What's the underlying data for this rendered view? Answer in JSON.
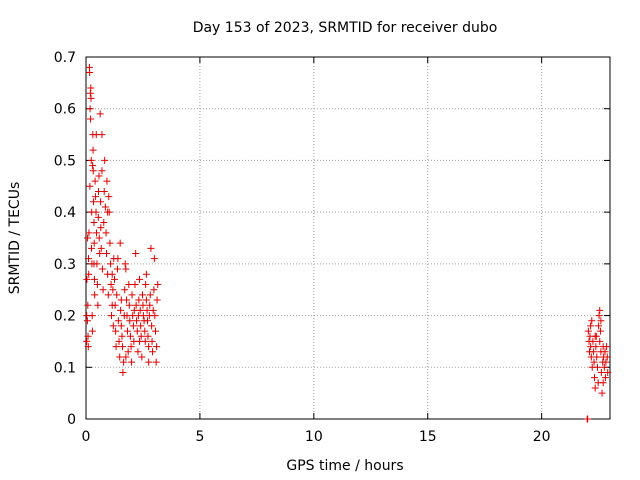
{
  "chart_data": {
    "type": "scatter",
    "title": "Day 153 of 2023, SRMTID for receiver dubo",
    "xlabel": "GPS time / hours",
    "ylabel": "SRMTID / TECUs",
    "xlim": [
      0,
      23
    ],
    "ylim": [
      0,
      0.7
    ],
    "xticks": [
      0,
      5,
      10,
      15,
      20
    ],
    "yticks": [
      0,
      0.1,
      0.2,
      0.3,
      0.4,
      0.5,
      0.6,
      0.7
    ],
    "grid": true,
    "legend": "none",
    "marker": "plus",
    "color": "#e00000",
    "series": [
      {
        "values": [
          [
            0.03,
            0.15
          ],
          [
            0.03,
            0.2
          ],
          [
            0.04,
            0.27
          ],
          [
            0.06,
            0.19
          ],
          [
            0.07,
            0.35
          ],
          [
            0.08,
            0.22
          ],
          [
            0.09,
            0.16
          ],
          [
            0.1,
            0.14
          ],
          [
            0.11,
            0.31
          ],
          [
            0.12,
            0.28
          ],
          [
            0.13,
            0.36
          ],
          [
            0.15,
            0.68
          ],
          [
            0.16,
            0.67
          ],
          [
            0.17,
            0.45
          ],
          [
            0.18,
            0.6
          ],
          [
            0.19,
            0.63
          ],
          [
            0.2,
            0.58
          ],
          [
            0.21,
            0.64
          ],
          [
            0.22,
            0.62
          ],
          [
            0.23,
            0.5
          ],
          [
            0.24,
            0.33
          ],
          [
            0.25,
            0.4
          ],
          [
            0.26,
            0.3
          ],
          [
            0.27,
            0.2
          ],
          [
            0.28,
            0.17
          ],
          [
            0.29,
            0.49
          ],
          [
            0.3,
            0.55
          ],
          [
            0.31,
            0.52
          ],
          [
            0.32,
            0.48
          ],
          [
            0.33,
            0.42
          ],
          [
            0.35,
            0.38
          ],
          [
            0.36,
            0.34
          ],
          [
            0.37,
            0.27
          ],
          [
            0.38,
            0.24
          ],
          [
            0.4,
            0.46
          ],
          [
            0.42,
            0.43
          ],
          [
            0.44,
            0.4
          ],
          [
            0.46,
            0.36
          ],
          [
            0.48,
            0.3
          ],
          [
            0.5,
            0.26
          ],
          [
            0.52,
            0.22
          ],
          [
            0.54,
            0.39
          ],
          [
            0.55,
            0.44
          ],
          [
            0.57,
            0.47
          ],
          [
            0.58,
            0.35
          ],
          [
            0.6,
            0.32
          ],
          [
            0.62,
            0.59
          ],
          [
            0.64,
            0.42
          ],
          [
            0.65,
            0.37
          ],
          [
            0.67,
            0.33
          ],
          [
            0.7,
            0.55
          ],
          [
            0.72,
            0.29
          ],
          [
            0.75,
            0.25
          ],
          [
            0.78,
            0.38
          ],
          [
            0.8,
            0.44
          ],
          [
            0.82,
            0.5
          ],
          [
            0.85,
            0.41
          ],
          [
            0.88,
            0.36
          ],
          [
            0.9,
            0.32
          ],
          [
            0.92,
            0.46
          ],
          [
            0.95,
            0.28
          ],
          [
            0.98,
            0.24
          ],
          [
            1.0,
            0.43
          ],
          [
            1.02,
            0.4
          ],
          [
            1.05,
            0.34
          ],
          [
            1.08,
            0.3
          ],
          [
            1.1,
            0.26
          ],
          [
            1.12,
            0.2
          ],
          [
            1.15,
            0.22
          ],
          [
            1.18,
            0.25
          ],
          [
            1.2,
            0.18
          ],
          [
            1.22,
            0.31
          ],
          [
            1.25,
            0.27
          ],
          [
            1.28,
            0.22
          ],
          [
            1.3,
            0.17
          ],
          [
            1.32,
            0.14
          ],
          [
            1.35,
            0.24
          ],
          [
            1.38,
            0.29
          ],
          [
            1.4,
            0.31
          ],
          [
            1.42,
            0.19
          ],
          [
            1.45,
            0.15
          ],
          [
            1.48,
            0.12
          ],
          [
            1.5,
            0.34
          ],
          [
            1.52,
            0.21
          ],
          [
            1.55,
            0.18
          ],
          [
            1.58,
            0.16
          ],
          [
            1.6,
            0.14
          ],
          [
            1.62,
            0.09
          ],
          [
            1.65,
            0.11
          ],
          [
            1.68,
            0.2
          ],
          [
            1.7,
            0.25
          ],
          [
            1.72,
            0.3
          ],
          [
            1.75,
            0.29
          ],
          [
            1.78,
            0.23
          ],
          [
            1.8,
            0.2
          ],
          [
            1.82,
            0.17
          ],
          [
            1.85,
            0.13
          ],
          [
            1.88,
            0.26
          ],
          [
            1.9,
            0.22
          ],
          [
            1.92,
            0.19
          ],
          [
            1.95,
            0.16
          ],
          [
            1.98,
            0.14
          ],
          [
            2.0,
            0.11
          ],
          [
            2.02,
            0.24
          ],
          [
            2.05,
            0.2
          ],
          [
            2.08,
            0.18
          ],
          [
            2.1,
            0.15
          ],
          [
            2.12,
            0.21
          ],
          [
            2.15,
            0.26
          ],
          [
            2.18,
            0.32
          ],
          [
            2.2,
            0.22
          ],
          [
            2.22,
            0.19
          ],
          [
            2.25,
            0.17
          ],
          [
            2.28,
            0.13
          ],
          [
            2.3,
            0.2
          ],
          [
            2.32,
            0.23
          ],
          [
            2.35,
            0.27
          ],
          [
            2.38,
            0.21
          ],
          [
            2.4,
            0.18
          ],
          [
            2.42,
            0.16
          ],
          [
            2.45,
            0.12
          ],
          [
            2.48,
            0.24
          ],
          [
            2.5,
            0.22
          ],
          [
            2.52,
            0.2
          ],
          [
            2.55,
            0.19
          ],
          [
            2.58,
            0.17
          ],
          [
            2.6,
            0.15
          ],
          [
            2.62,
            0.26
          ],
          [
            2.65,
            0.23
          ],
          [
            2.68,
            0.21
          ],
          [
            2.7,
            0.19
          ],
          [
            2.72,
            0.16
          ],
          [
            2.75,
            0.14
          ],
          [
            2.78,
            0.2
          ],
          [
            2.8,
            0.22
          ],
          [
            2.82,
            0.24
          ],
          [
            2.85,
            0.33
          ],
          [
            2.88,
            0.18
          ],
          [
            2.9,
            0.15
          ],
          [
            2.92,
            0.13
          ],
          [
            2.95,
            0.21
          ],
          [
            2.98,
            0.25
          ],
          [
            3.0,
            0.31
          ],
          [
            3.02,
            0.2
          ],
          [
            3.05,
            0.17
          ],
          [
            3.08,
            0.11
          ],
          [
            3.1,
            0.14
          ],
          [
            3.12,
            0.23
          ],
          [
            3.15,
            0.26
          ],
          [
            0.45,
            0.55
          ],
          [
            0.95,
            0.4
          ],
          [
            1.15,
            0.28
          ],
          [
            1.55,
            0.23
          ],
          [
            1.75,
            0.12
          ],
          [
            2.35,
            0.15
          ],
          [
            2.65,
            0.28
          ],
          [
            2.75,
            0.11
          ],
          [
            0.7,
            0.48
          ],
          [
            0.35,
            0.3
          ],
          [
            22.0,
            0.0
          ],
          [
            22.02,
            0.0
          ],
          [
            22.05,
            0.17
          ],
          [
            22.08,
            0.15
          ],
          [
            22.1,
            0.13
          ],
          [
            22.12,
            0.16
          ],
          [
            22.15,
            0.14
          ],
          [
            22.18,
            0.12
          ],
          [
            22.2,
            0.19
          ],
          [
            22.22,
            0.1
          ],
          [
            22.25,
            0.15
          ],
          [
            22.28,
            0.13
          ],
          [
            22.3,
            0.11
          ],
          [
            22.32,
            0.08
          ],
          [
            22.35,
            0.06
          ],
          [
            22.38,
            0.14
          ],
          [
            22.4,
            0.16
          ],
          [
            22.42,
            0.12
          ],
          [
            22.45,
            0.1
          ],
          [
            22.48,
            0.07
          ],
          [
            22.5,
            0.18
          ],
          [
            22.52,
            0.2
          ],
          [
            22.55,
            0.21
          ],
          [
            22.58,
            0.17
          ],
          [
            22.6,
            0.13
          ],
          [
            22.62,
            0.09
          ],
          [
            22.65,
            0.05
          ],
          [
            22.68,
            0.11
          ],
          [
            22.7,
            0.14
          ],
          [
            22.72,
            0.12
          ],
          [
            22.75,
            0.1
          ],
          [
            22.78,
            0.13
          ],
          [
            22.8,
            0.08
          ],
          [
            22.82,
            0.11
          ],
          [
            22.85,
            0.14
          ],
          [
            22.88,
            0.12
          ],
          [
            22.9,
            0.09
          ],
          [
            22.15,
            0.18
          ],
          [
            22.35,
            0.16
          ],
          [
            22.55,
            0.15
          ],
          [
            22.7,
            0.07
          ],
          [
            22.6,
            0.19
          ]
        ]
      }
    ]
  }
}
